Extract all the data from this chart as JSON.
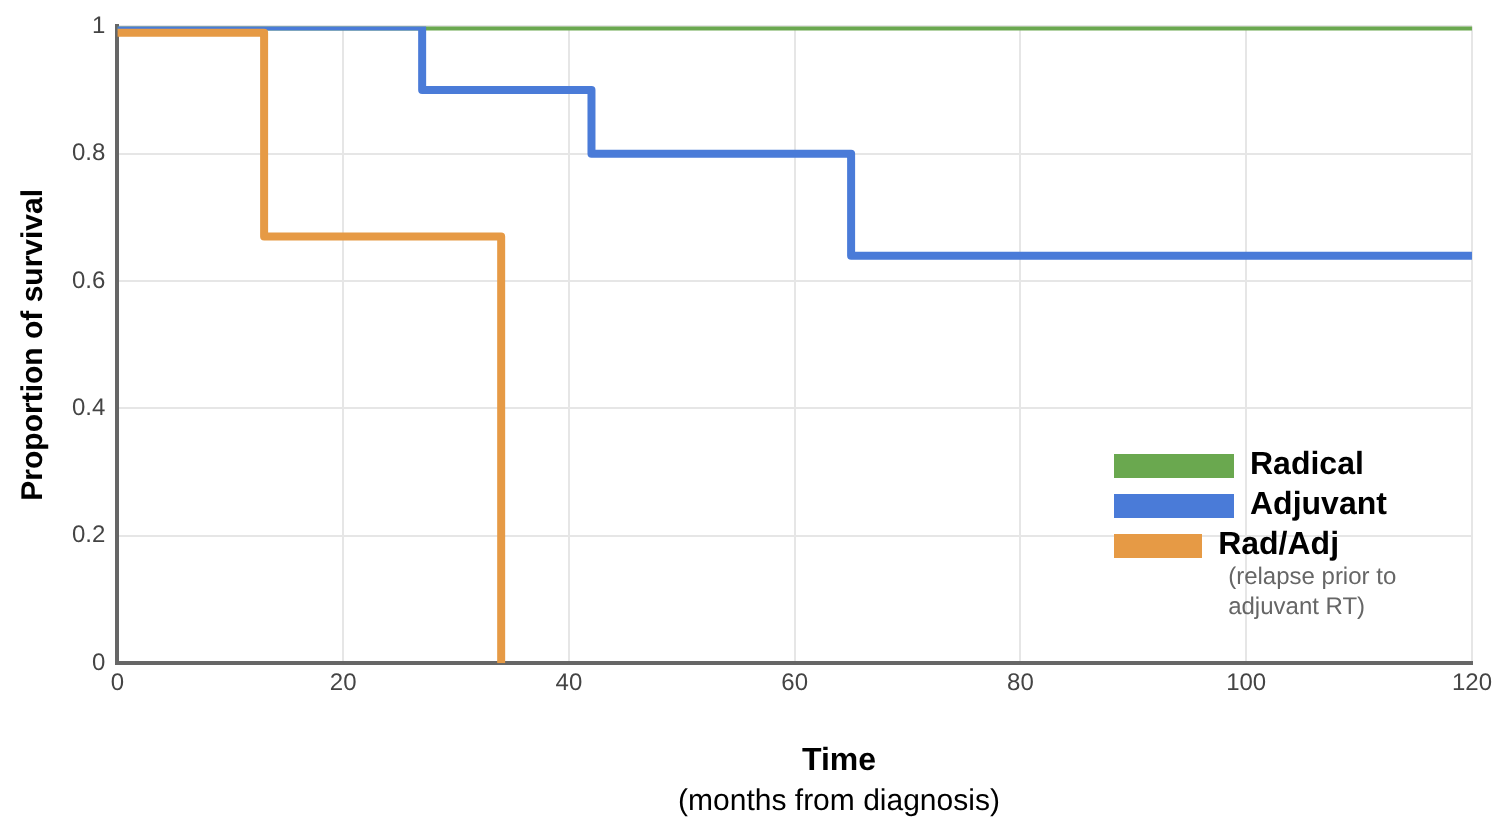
{
  "chart_data": {
    "type": "step",
    "xlabel": "Time",
    "ylabel": "Proportion of survival",
    "annotations": [
      "(months from diagnosis)",
      "(relapse prior to adjuvant RT)"
    ],
    "series": [
      {
        "name": "Radical",
        "color": "#6aa84f",
        "x": [
          0,
          120
        ],
        "values": [
          1,
          1
        ]
      },
      {
        "name": "Adjuvant",
        "color": "#4a7bd8",
        "x": [
          0,
          27,
          42,
          65,
          120
        ],
        "values": [
          1,
          0.9,
          0.8,
          0.64,
          0.64
        ]
      },
      {
        "name": "Rad/Adj",
        "color": "#e69a45",
        "x": [
          0,
          13,
          34
        ],
        "values": [
          0.99,
          0.67,
          0
        ]
      }
    ],
    "xlim": [
      0,
      120
    ],
    "xticks": [
      0,
      20,
      40,
      60,
      80,
      100,
      120
    ],
    "ylim": [
      0,
      1
    ],
    "yticks": [
      0,
      0.2,
      0.4,
      0.6,
      0.8,
      1
    ],
    "grid": true,
    "legend": "bottom right"
  }
}
